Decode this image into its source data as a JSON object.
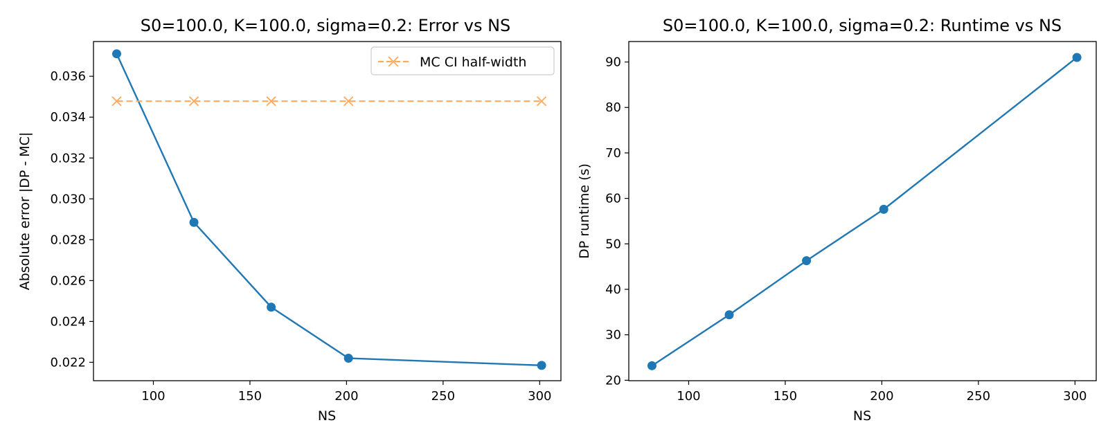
{
  "figure_background": "#ffffff",
  "chart_data": [
    {
      "type": "line",
      "title": "S0=100.0, K=100.0, sigma=0.2: Error vs NS",
      "xlabel": "NS",
      "ylabel": "Absolute error |DP - MC|",
      "xlim": [
        69,
        311
      ],
      "ylim": [
        0.0211,
        0.0377
      ],
      "xticks": [
        100,
        150,
        200,
        250,
        300
      ],
      "yticks": [
        0.022,
        0.024,
        0.026,
        0.028,
        0.03,
        0.032,
        0.034,
        0.036
      ],
      "ytick_decimals": 3,
      "grid": false,
      "legend_position": "top-right",
      "series": [
        {
          "x": [
            81,
            121,
            161,
            201,
            301
          ],
          "values": [
            0.0371,
            0.02885,
            0.0247,
            0.0222,
            0.02185
          ],
          "color": "#1f77b4",
          "line_style": "solid",
          "marker": "circle",
          "in_legend": false
        },
        {
          "name": "MC CI half-width",
          "x": [
            81,
            121,
            161,
            201,
            301
          ],
          "values": [
            0.03478,
            0.03478,
            0.03478,
            0.03478,
            0.03478
          ],
          "color": "#ffaa5e",
          "line_style": "dashed",
          "marker": "x",
          "in_legend": true
        }
      ]
    },
    {
      "type": "line",
      "title": "S0=100.0, K=100.0, sigma=0.2: Runtime vs NS",
      "xlabel": "NS",
      "ylabel": "DP runtime (s)",
      "xlim": [
        69,
        311
      ],
      "ylim": [
        19.9,
        94.5
      ],
      "xticks": [
        100,
        150,
        200,
        250,
        300
      ],
      "yticks": [
        20,
        30,
        40,
        50,
        60,
        70,
        80,
        90
      ],
      "ytick_decimals": 0,
      "grid": false,
      "legend_position": "none",
      "series": [
        {
          "x": [
            81,
            121,
            161,
            201,
            301
          ],
          "values": [
            23.2,
            34.4,
            46.3,
            57.6,
            91.0
          ],
          "color": "#1f77b4",
          "line_style": "solid",
          "marker": "circle",
          "in_legend": false
        }
      ]
    }
  ]
}
